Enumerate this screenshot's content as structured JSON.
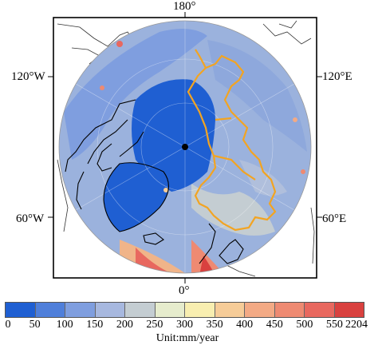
{
  "map": {
    "lon_labels": {
      "top": "180°",
      "bottom": "0°",
      "left_upper": "120°W",
      "right_upper": "120°E",
      "left_lower": "60°W",
      "right_lower": "60°E"
    }
  },
  "legend": {
    "ticks": [
      "0",
      "50",
      "100",
      "150",
      "200",
      "250",
      "300",
      "350",
      "400",
      "450",
      "500",
      "550",
      "2204"
    ],
    "colors": [
      "#1f5fd2",
      "#4f7fda",
      "#7f9edf",
      "#a7b8df",
      "#c4cdd2",
      "#e6eccd",
      "#f8eeb0",
      "#f6cc98",
      "#f3aa85",
      "#ee8a72",
      "#e8685f",
      "#d9413f"
    ],
    "unit_label": "Unit:mm/year"
  },
  "colors": {
    "ocean_ice": "#1f5fd2",
    "land_blue": "#6d8fd8",
    "border_orange": "#f2a422",
    "coast": "#000000"
  }
}
